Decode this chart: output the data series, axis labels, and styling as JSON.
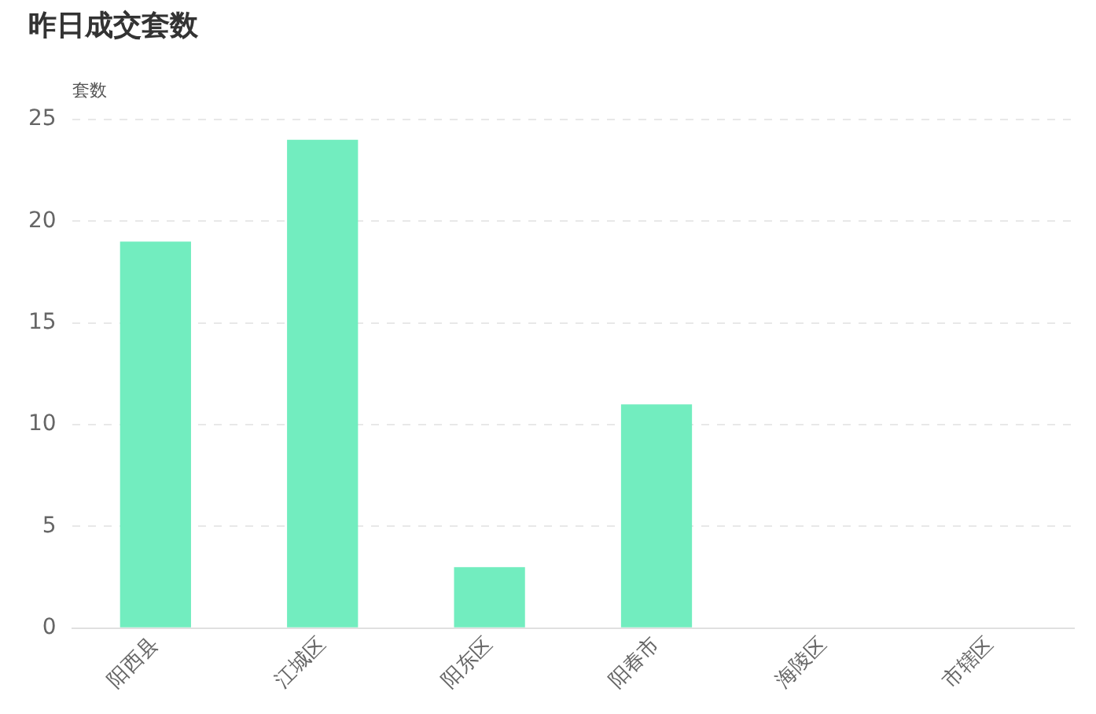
{
  "chart_data": {
    "type": "bar",
    "title": "昨日成交套数",
    "ylabel": "套数",
    "categories": [
      "阳西县",
      "江城区",
      "阳东区",
      "阳春市",
      "海陵区",
      "市辖区"
    ],
    "values": [
      19,
      24,
      3,
      11,
      0,
      0
    ],
    "color": "#72edbf",
    "ylim": [
      0,
      25
    ],
    "yticks": [
      0,
      5,
      10,
      15,
      20,
      25
    ],
    "grid": "y",
    "legend": false
  }
}
